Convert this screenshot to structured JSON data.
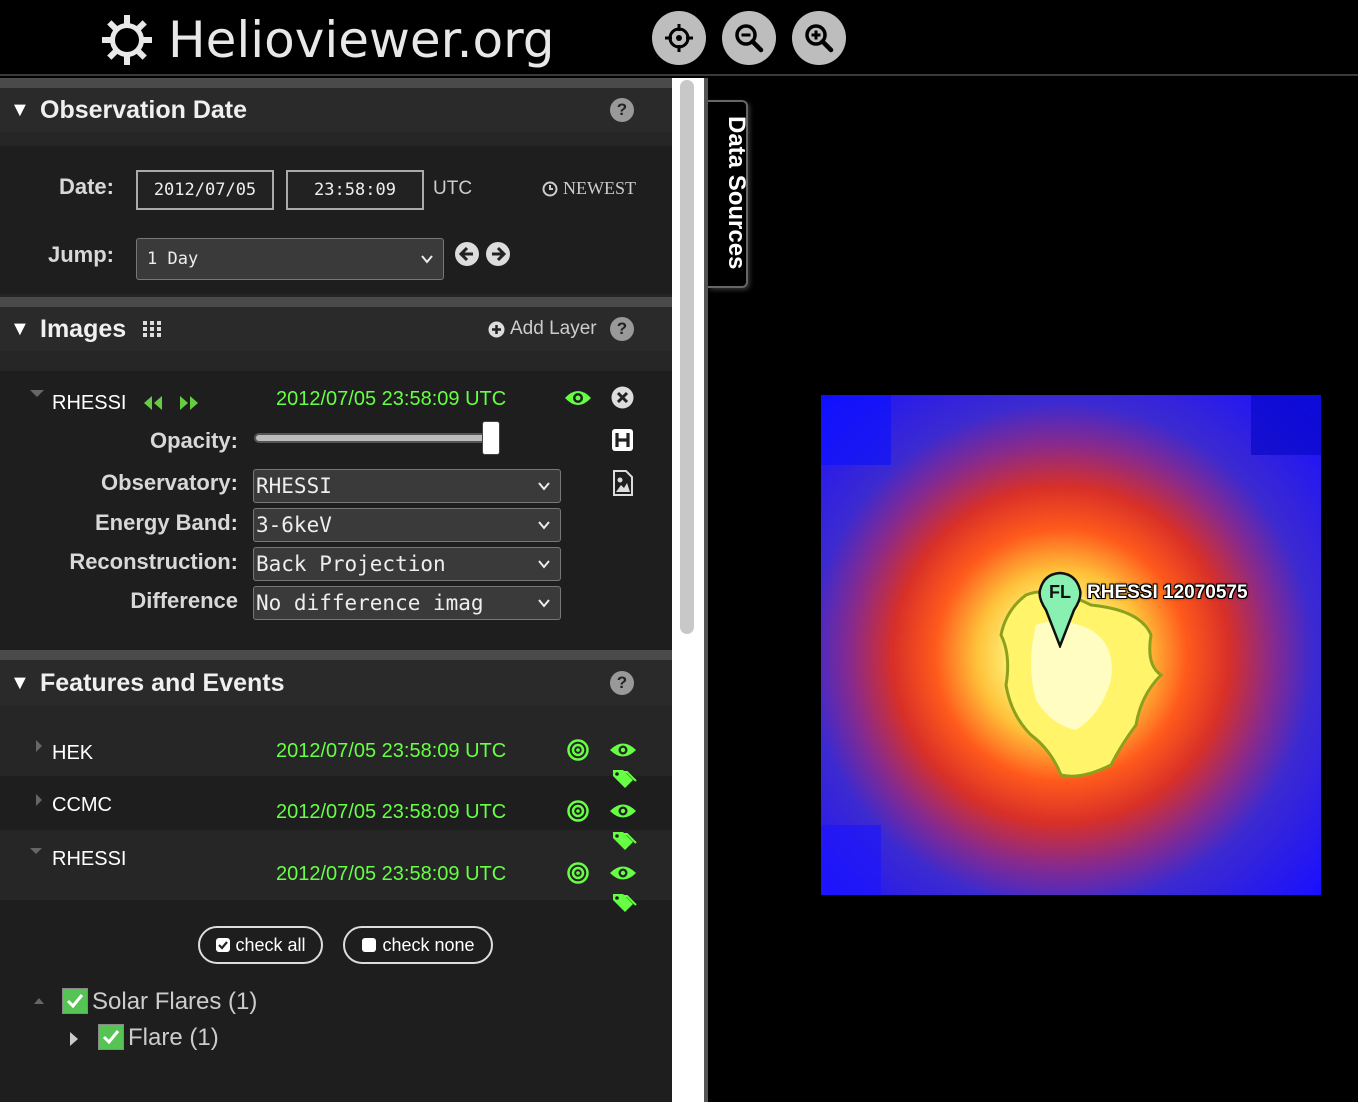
{
  "header": {
    "logo_text": "Helioviewer.org",
    "buttons": [
      {
        "name": "center-viewport",
        "icon": "crosshair-icon"
      },
      {
        "name": "zoom-out",
        "icon": "zoom-out-icon"
      },
      {
        "name": "zoom-in",
        "icon": "zoom-in-icon"
      }
    ]
  },
  "observation": {
    "title": "Observation Date",
    "date_label": "Date:",
    "date_value": "2012/07/05",
    "time_value": "23:58:09",
    "tz": "UTC",
    "newest_label": "NEWEST",
    "jump_label": "Jump:",
    "jump_value": "1 Day"
  },
  "images": {
    "title": "Images",
    "add_layer_label": "Add Layer",
    "layer": {
      "name": "RHESSI",
      "timestamp": "2012/07/05 23:58:09 UTC",
      "opacity_label": "Opacity:",
      "opacity_value": 1.0,
      "observatory_label": "Observatory:",
      "observatory_value": "RHESSI",
      "energy_label": "Energy Band:",
      "energy_value": "3-6keV",
      "reconstruction_label": "Reconstruction:",
      "reconstruction_value": "Back Projection",
      "difference_label": "Difference",
      "difference_value": "No difference imag"
    }
  },
  "features": {
    "title": "Features and Events",
    "rows": [
      {
        "name": "HEK",
        "timestamp": "2012/07/05 23:58:09 UTC"
      },
      {
        "name": "CCMC",
        "timestamp": "2012/07/05 23:58:09 UTC"
      },
      {
        "name": "RHESSI",
        "timestamp": "2012/07/05 23:58:09 UTC"
      }
    ],
    "check_all_label": "check all",
    "check_none_label": "check none",
    "tree": [
      {
        "label": "Solar Flares (1)"
      },
      {
        "label": "Flare (1)"
      }
    ]
  },
  "viewport": {
    "data_sources_label": "Data Sources",
    "marker_code": "FL",
    "marker_label": "RHESSI 12070575"
  },
  "colors": {
    "accent_green": "#66ff44",
    "panel_bg": "#1e1e1e",
    "marker_fill": "#88f0b0"
  }
}
